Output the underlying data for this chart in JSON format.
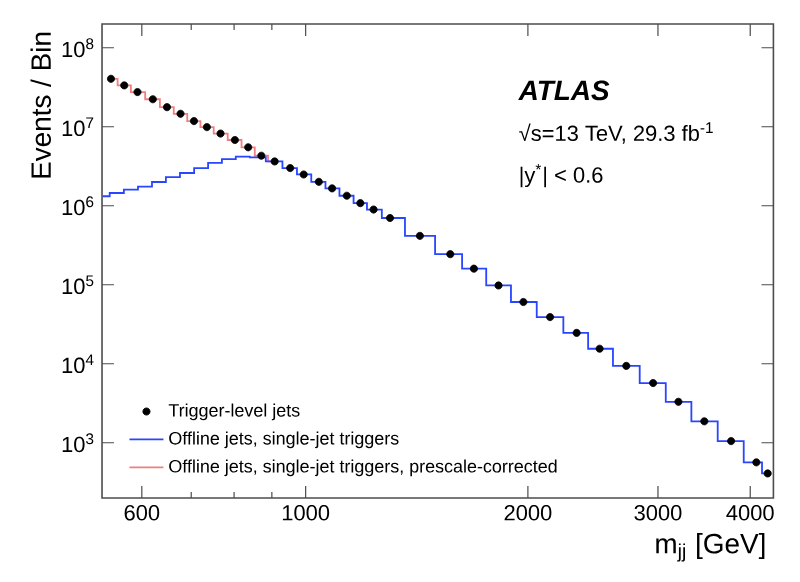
{
  "chart_data": {
    "type": "scatter",
    "xlabel": "m$_{jj}$ [GeV]",
    "ylabel": "Events / Bin",
    "annotations": [
      "ATLAS",
      "√s=13 TeV, 29.3 fb$^{-1}$",
      "|y$^{*}$| < 0.6"
    ],
    "log": "xy",
    "grid": false,
    "legend": "bottom left",
    "xlim": [
      530,
      4300
    ],
    "ylim": [
      200,
      200000000
    ],
    "xticks": [
      600,
      {
        "value": 700,
        "label": null
      },
      {
        "value": 800,
        "label": null
      },
      {
        "value": 900,
        "label": null
      },
      1000,
      2000,
      3000,
      4000
    ],
    "yticks": [
      {
        "value": 1000,
        "label": "10$^{3}$"
      },
      {
        "value": 10000,
        "label": "10$^{4}$"
      },
      {
        "value": 100000,
        "label": "10$^{5}$"
      },
      {
        "value": 1000000,
        "label": "10$^{6}$"
      },
      {
        "value": 10000000,
        "label": "10$^{7}$"
      },
      {
        "value": 100000000,
        "label": "10$^{8}$"
      }
    ],
    "series": [
      {
        "name": "Trigger-level jets",
        "marker": "circle",
        "color": "#000000",
        "x": [
          545,
          568,
          592,
          621,
          649,
          677,
          706,
          735,
          767,
          802,
          836,
          871,
          908,
          953,
          994,
          1042,
          1086,
          1137,
          1186,
          1236,
          1301,
          1428,
          1570,
          1690,
          1825,
          1972,
          2143,
          2328,
          2501,
          2718,
          2955,
          3198,
          3467,
          3769,
          4077,
          4224
        ],
        "values": [
          40500000,
          33400000,
          27500000,
          22300000,
          17700000,
          14600000,
          11800000,
          9900000,
          8200000,
          6800000,
          5500000,
          4300000,
          3640000,
          3000000,
          2490000,
          2010000,
          1660000,
          1340000,
          1080000,
          896000,
          700000,
          416000,
          244000,
          160000,
          98000,
          60500,
          39000,
          24600,
          15500,
          9400,
          5700,
          3300,
          1870,
          1050,
          565,
          409
        ]
      },
      {
        "name": "Offline jets, single-jet triggers",
        "type": "step",
        "color": "#2846ff",
        "x": [
          531,
          555,
          580,
          606,
          633,
          661,
          691,
          722,
          754,
          787,
          822,
          859,
          908,
          953,
          994,
          1042,
          1086,
          1137,
          1186,
          1236,
          1301,
          1428,
          1570,
          1690,
          1825,
          1972,
          2143,
          2328,
          2501,
          2718,
          2955,
          3198,
          3467,
          3769,
          4077,
          4224
        ],
        "values": [
          1320000,
          1450000,
          1600000,
          1750000,
          2000000,
          2300000,
          2600000,
          3000000,
          3500000,
          3900000,
          4200000,
          4100000,
          3640000,
          3000000,
          2490000,
          2010000,
          1660000,
          1340000,
          1080000,
          896000,
          700000,
          416000,
          244000,
          160000,
          98000,
          60500,
          39000,
          24600,
          15500,
          9400,
          5700,
          3300,
          1870,
          1050,
          565,
          409
        ]
      },
      {
        "name": "Offline jets, single-jet triggers, prescale-corrected",
        "type": "step",
        "color": "#f08080",
        "x": [
          545,
          568,
          592,
          621,
          649,
          677,
          706,
          735,
          767,
          802,
          836,
          871,
          908
        ],
        "values": [
          40500000,
          33400000,
          27500000,
          22300000,
          17700000,
          14600000,
          11800000,
          9900000,
          8200000,
          6800000,
          5500000,
          4300000,
          3640000
        ]
      }
    ]
  }
}
